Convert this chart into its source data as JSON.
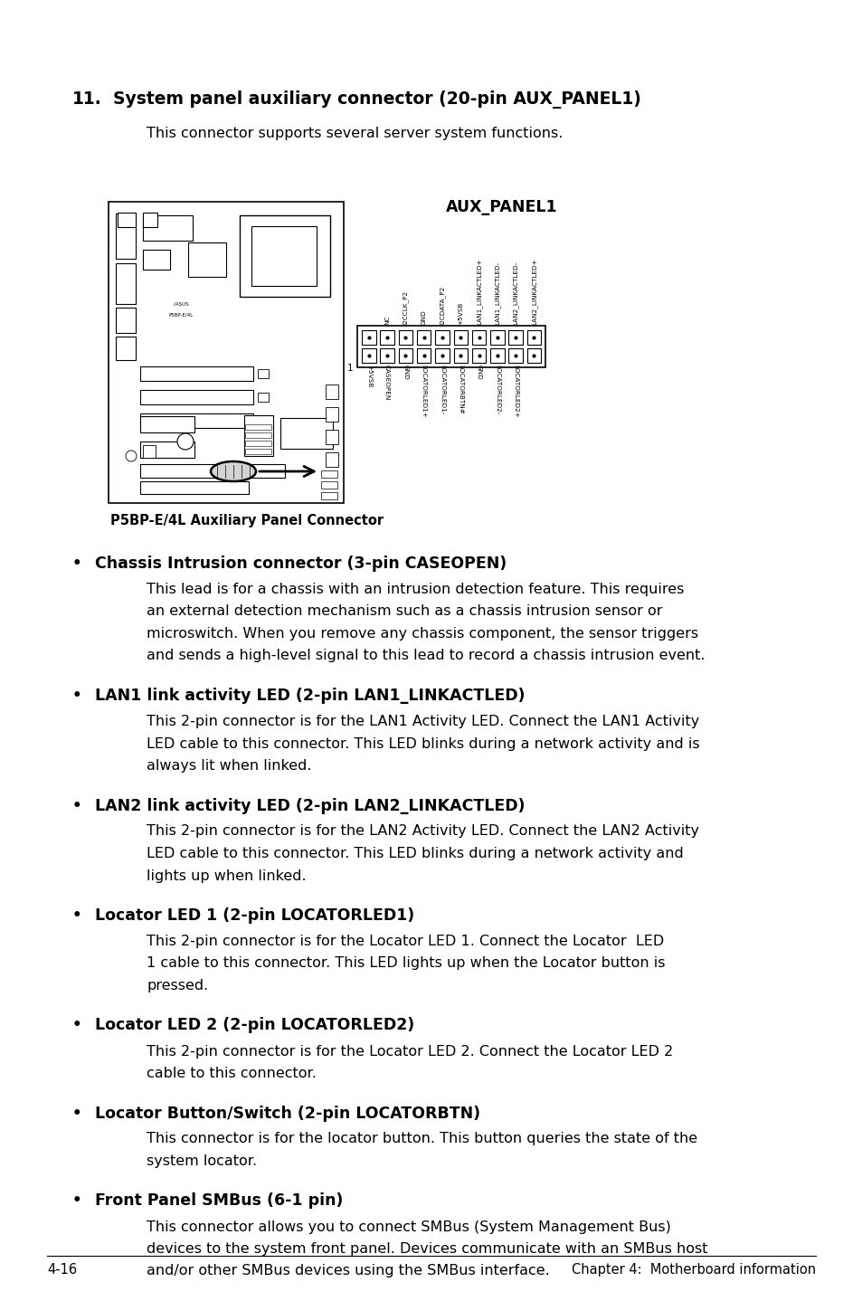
{
  "bg_color": "#ffffff",
  "heading_number": "11.",
  "heading_text": "System panel auxiliary connector (20-pin AUX_PANEL1)",
  "intro_text": "This connector supports several server system functions.",
  "connector_label": "AUX_PANEL1",
  "board_label_line1": "/ASUS",
  "board_label_line2": "P5BP-E/4L",
  "caption": "P5BP-E/4L Auxiliary Panel Connector",
  "bullet_items": [
    {
      "title": "Chassis Intrusion connector (3-pin CASEOPEN)",
      "body": "This lead is for a chassis with an intrusion detection feature. This requires\nan external detection mechanism such as a chassis intrusion sensor or\nmicroswitch. When you remove any chassis component, the sensor triggers\nand sends a high-level signal to this lead to record a chassis intrusion event."
    },
    {
      "title": "LAN1 link activity LED (2-pin LAN1_LINKACTLED)",
      "body": "This 2-pin connector is for the LAN1 Activity LED. Connect the LAN1 Activity\nLED cable to this connector. This LED blinks during a network activity and is\nalways lit when linked."
    },
    {
      "title": "LAN2 link activity LED (2-pin LAN2_LINKACTLED)",
      "body": "This 2-pin connector is for the LAN2 Activity LED. Connect the LAN2 Activity\nLED cable to this connector. This LED blinks during a network activity and\nlights up when linked."
    },
    {
      "title": "Locator LED 1 (2-pin LOCATORLED1)",
      "body": "This 2-pin connector is for the Locator LED 1. Connect the Locator  LED\n1 cable to this connector. This LED lights up when the Locator button is\npressed."
    },
    {
      "title": "Locator LED 2 (2-pin LOCATORLED2)",
      "body": "This 2-pin connector is for the Locator LED 2. Connect the Locator LED 2\ncable to this connector."
    },
    {
      "title": "Locator Button/Switch (2-pin LOCATORBTN)",
      "body": "This connector is for the locator button. This button queries the state of the\nsystem locator."
    },
    {
      "title": "Front Panel SMBus (6-1 pin)",
      "body": "This connector allows you to connect SMBus (System Management Bus)\ndevices to the system front panel. Devices communicate with an SMBus host\nand/or other SMBus devices using the SMBus interface."
    }
  ],
  "footer_left": "4-16",
  "footer_right": "Chapter 4:  Motherboard information",
  "top_pin_labels": [
    "NC",
    "I2CCLK_P2",
    "GND",
    "I2CDATA_P2",
    "+5VSB",
    "LAN1_LINKACTLED+",
    "LAN1_LINKACTLED-",
    "LAN2_LINKACTLED-",
    "LAN2_LINKACTLED+"
  ],
  "bottom_pin_labels": [
    "+5VSB",
    "CASEOPEN",
    "GND",
    "LOCATORLED1+",
    "LOCATORLED1-",
    "LOCATORBTN#",
    "GND",
    "LOCATORLED2-",
    "LOCATORLED2+"
  ]
}
